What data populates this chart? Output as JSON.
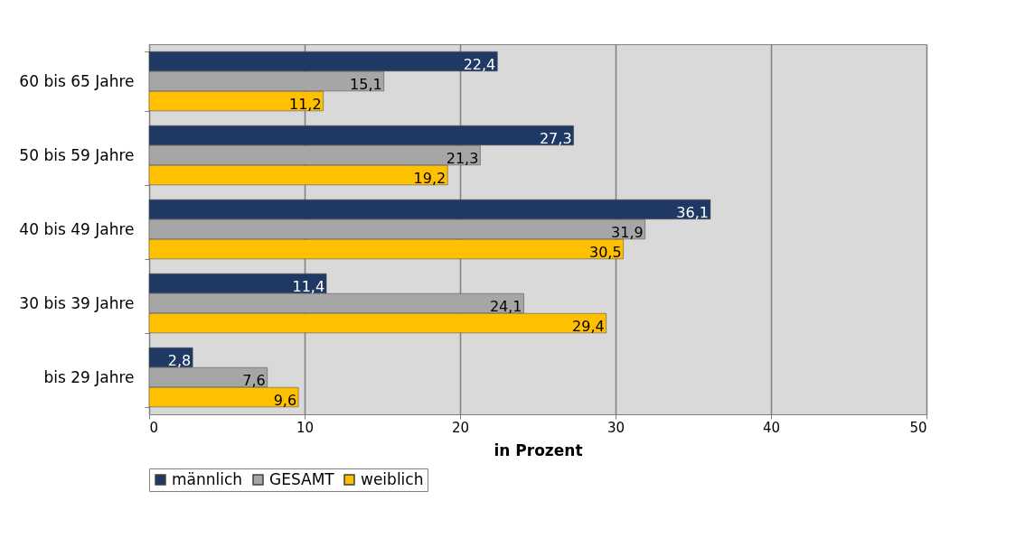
{
  "chart_data": {
    "type": "bar",
    "orientation": "horizontal",
    "xlabel": "in Prozent",
    "categories": [
      "60 bis 65 Jahre",
      "50 bis 59 Jahre",
      "40 bis 49 Jahre",
      "30 bis 39 Jahre",
      "bis 29 Jahre"
    ],
    "series": [
      {
        "name": "männlich",
        "color": "#1f3864",
        "values": [
          22.4,
          27.3,
          36.1,
          11.4,
          2.8
        ],
        "value_labels": [
          "22,4",
          "27,3",
          "36,1",
          "11,4",
          "2,8"
        ]
      },
      {
        "name": "GESAMT",
        "color": "#a6a6a6",
        "values": [
          15.1,
          21.3,
          31.9,
          24.1,
          7.6
        ],
        "value_labels": [
          "15,1",
          "21,3",
          "31,9",
          "24,1",
          "7,6"
        ]
      },
      {
        "name": "weiblich",
        "color": "#ffc000",
        "values": [
          11.2,
          19.2,
          30.5,
          29.4,
          9.6
        ],
        "value_labels": [
          "11,2",
          "19,2",
          "30,5",
          "29,4",
          "9,6"
        ]
      }
    ],
    "xlim": [
      0,
      50
    ],
    "xticks": [
      0,
      10,
      20,
      30,
      40,
      50
    ],
    "grid": "x",
    "legend": "bottom"
  }
}
